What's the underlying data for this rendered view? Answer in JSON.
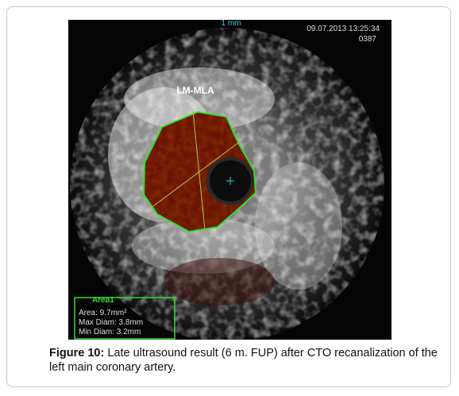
{
  "figure": {
    "image": {
      "scale_label": "1 mm",
      "timestamp": "09.07.2013 13:25:34",
      "frame": "0387",
      "region_label": "LM-MLA",
      "measurement": {
        "title": "Area1",
        "lines": [
          "Area: 9.7mm²",
          "Max Diam: 3.8mm",
          "Min Diam: 3.2mm"
        ]
      }
    },
    "caption": {
      "label": "Figure 10:",
      "text": "Late ultrasound result (6 m. FUP) after CTO recanalization of the left main coronary artery."
    }
  }
}
